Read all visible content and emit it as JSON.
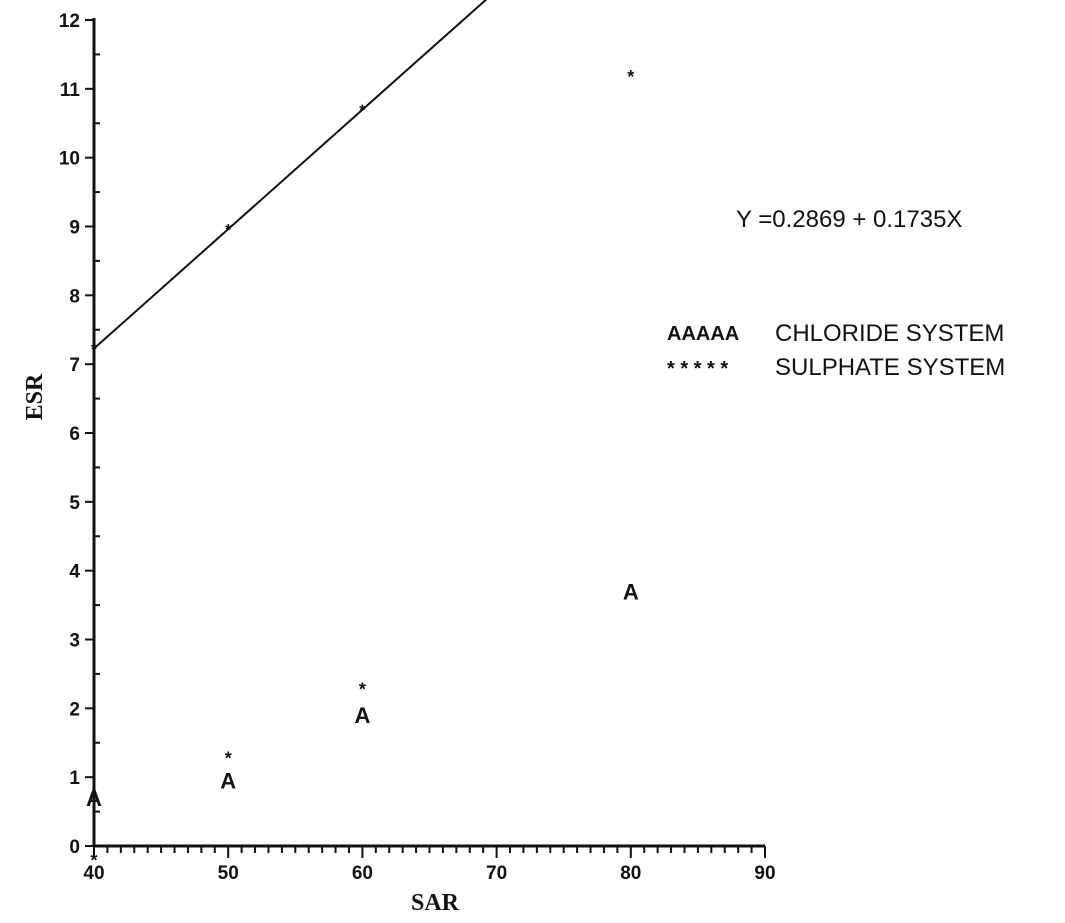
{
  "chart_data": {
    "type": "scatter",
    "title": "",
    "xlabel": "SAR",
    "ylabel": "ESR",
    "xlim": [
      40,
      90
    ],
    "ylim": [
      0,
      12
    ],
    "xticks": [
      40,
      50,
      60,
      70,
      80,
      90
    ],
    "yticks": [
      0,
      1,
      2,
      3,
      4,
      5,
      6,
      7,
      8,
      9,
      10,
      11,
      12
    ],
    "grid": false,
    "legend_placement": "right",
    "series": [
      {
        "name": "CHLORIDE SYSTEM",
        "legend_marker": "AAAAA",
        "marker": "A",
        "x": [
          40,
          50,
          60,
          80
        ],
        "y": [
          0.7,
          0.95,
          1.9,
          3.7
        ]
      },
      {
        "name": "SULPHATE SYSTEM",
        "legend_marker": "* * * * *",
        "marker": "*",
        "x": [
          40,
          50,
          60,
          80
        ],
        "y": [
          -0.18,
          1.3,
          2.3,
          11.2
        ]
      }
    ],
    "fit_line": {
      "equation": "Y =0.2869  +  0.1735X",
      "intercept": 0.2869,
      "slope": 0.1735,
      "x_range": [
        40,
        80
      ],
      "line_markers_x": [
        40,
        50,
        60,
        80
      ]
    }
  }
}
